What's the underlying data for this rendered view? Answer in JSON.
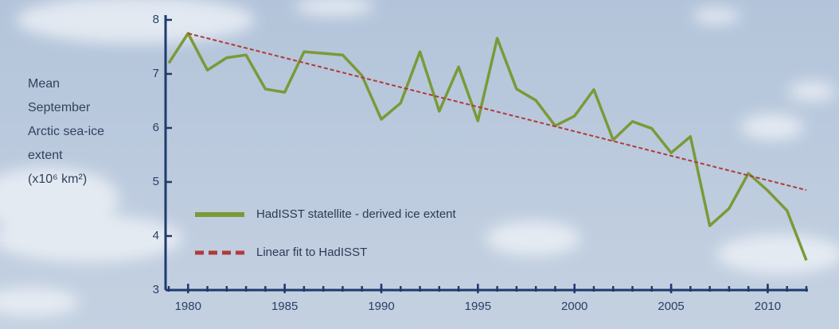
{
  "chart_data": {
    "type": "line",
    "ylabel_lines": [
      "Mean",
      "September",
      "Arctic sea-ice",
      "extent",
      "(x10⁶ km²)"
    ],
    "xlim": [
      1979,
      2012
    ],
    "ylim": [
      3,
      8
    ],
    "xticks": [
      1980,
      1985,
      1990,
      1995,
      2000,
      2005,
      2010
    ],
    "xminorticks": [
      1979,
      1980,
      1981,
      1982,
      1983,
      1984,
      1985,
      1986,
      1987,
      1988,
      1989,
      1990,
      1991,
      1992,
      1993,
      1994,
      1995,
      1996,
      1997,
      1998,
      1999,
      2000,
      2001,
      2002,
      2003,
      2004,
      2005,
      2006,
      2007,
      2008,
      2009,
      2010,
      2011,
      2012
    ],
    "yticks": [
      3,
      4,
      5,
      6,
      7,
      8
    ],
    "legend": "lower left",
    "series": [
      {
        "name": "HadISST statellite - derived ice extent",
        "color": "#7a9a38",
        "dash": false,
        "x": [
          1979,
          1980,
          1981,
          1982,
          1983,
          1984,
          1985,
          1986,
          1987,
          1988,
          1989,
          1990,
          1991,
          1992,
          1993,
          1994,
          1995,
          1996,
          1997,
          1998,
          1999,
          2000,
          2001,
          2002,
          2003,
          2004,
          2005,
          2006,
          2007,
          2008,
          2009,
          2010,
          2011,
          2012
        ],
        "values": [
          7.2,
          7.75,
          7.07,
          7.3,
          7.35,
          6.72,
          6.66,
          7.41,
          7.38,
          7.35,
          6.97,
          6.16,
          6.46,
          7.41,
          6.31,
          7.13,
          6.13,
          7.66,
          6.72,
          6.51,
          6.04,
          6.22,
          6.71,
          5.78,
          6.12,
          5.99,
          5.54,
          5.84,
          4.19,
          4.51,
          5.16,
          4.84,
          4.47,
          3.55
        ]
      },
      {
        "name": "Linear fit to HadISST",
        "color": "#b03a3a",
        "dash": true,
        "x": [
          1980,
          2012
        ],
        "values": [
          7.75,
          4.85
        ]
      }
    ]
  }
}
